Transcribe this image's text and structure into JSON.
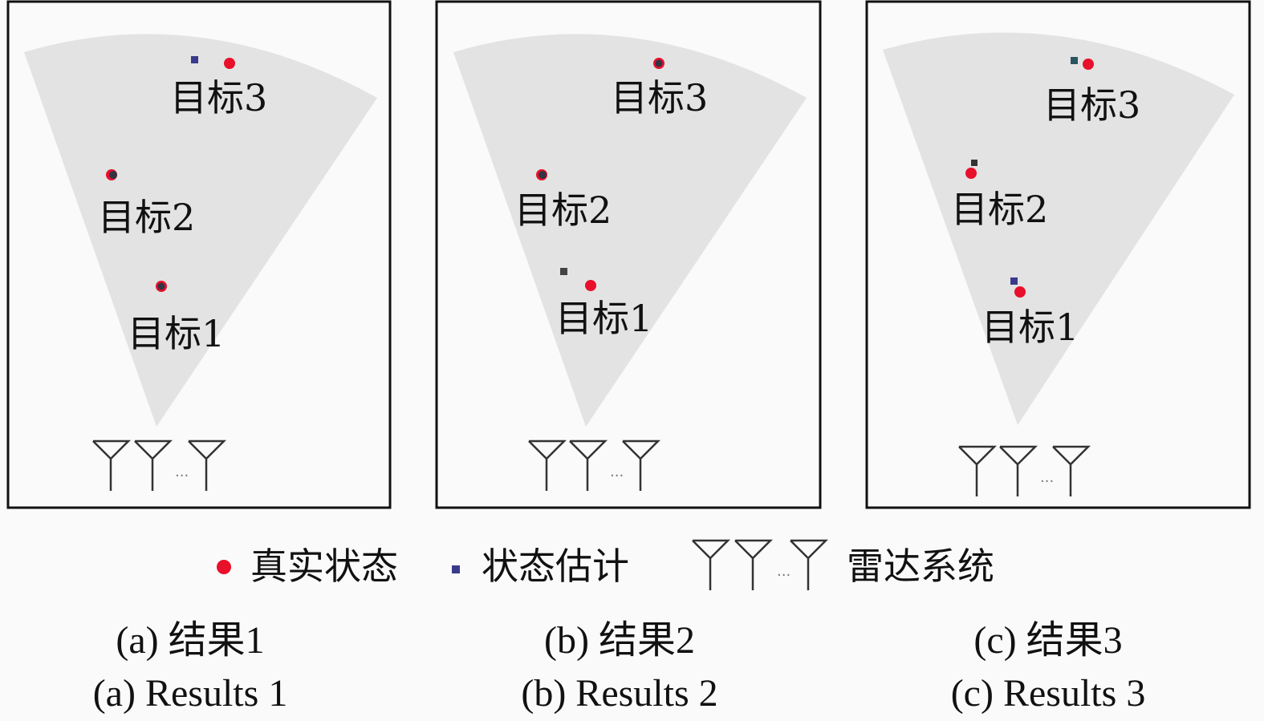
{
  "colors": {
    "true_state": "#e8102a",
    "estimate": "#3a3a8c",
    "sector": "#e3e3e3",
    "background": "#fafafa"
  },
  "icons": {
    "true_state": "red-dot-icon",
    "estimate": "square-marker-icon",
    "radar": "antenna-array-icon"
  },
  "panels": [
    {
      "targets": [
        "目标1",
        "目标2",
        "目标3"
      ],
      "caption_cn": "(a) 结果1",
      "caption_en": "(a) Results 1"
    },
    {
      "targets": [
        "目标1",
        "目标2",
        "目标3"
      ],
      "caption_cn": "(b) 结果2",
      "caption_en": "(b) Results 2"
    },
    {
      "targets": [
        "目标1",
        "目标2",
        "目标3"
      ],
      "caption_cn": "(c) 结果3",
      "caption_en": "(c) Results 3"
    }
  ],
  "antenna_ellipsis": "...",
  "legend": {
    "true_state": "真实状态",
    "estimate": "状态估计",
    "radar": "雷达系统"
  }
}
